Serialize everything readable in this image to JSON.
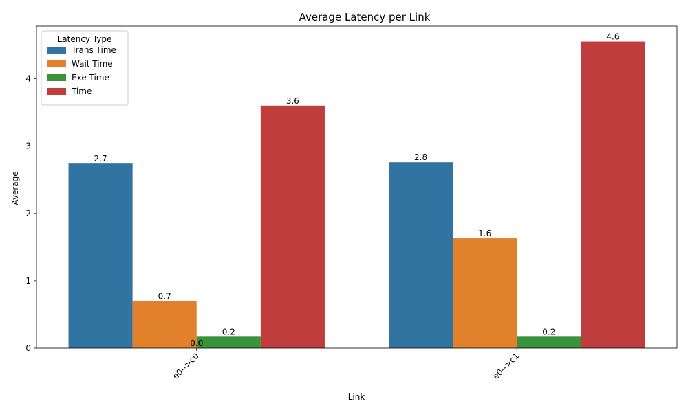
{
  "chart_data": {
    "type": "bar",
    "title": "Average Latency per Link",
    "xlabel": "Link",
    "ylabel": "Average",
    "categories": [
      "e0-->c0",
      "e0-->c1"
    ],
    "ylim": [
      0,
      4.78
    ],
    "yticks": [
      0,
      1,
      2,
      3,
      4
    ],
    "grid": false,
    "legend": {
      "title": "Latency Type",
      "placement": "top-left"
    },
    "series": [
      {
        "name": "Trans Time",
        "color": "#3274a1",
        "values": [
          2.74,
          2.76
        ],
        "labels": [
          "2.7",
          "2.8"
        ]
      },
      {
        "name": "Wait Time",
        "color": "#e1812c",
        "values": [
          0.7,
          1.63
        ],
        "labels": [
          "0.7",
          "1.6"
        ]
      },
      {
        "name": "Exe Time",
        "color": "#3a923a",
        "values": [
          0.17,
          0.17
        ],
        "labels": [
          "0.2",
          "0.2"
        ]
      },
      {
        "name": "Time",
        "color": "#c03d3e",
        "values": [
          3.6,
          4.55
        ],
        "labels": [
          "3.6",
          "4.6"
        ]
      }
    ],
    "extra_labels": [
      "0.0",
      "0.0"
    ]
  }
}
